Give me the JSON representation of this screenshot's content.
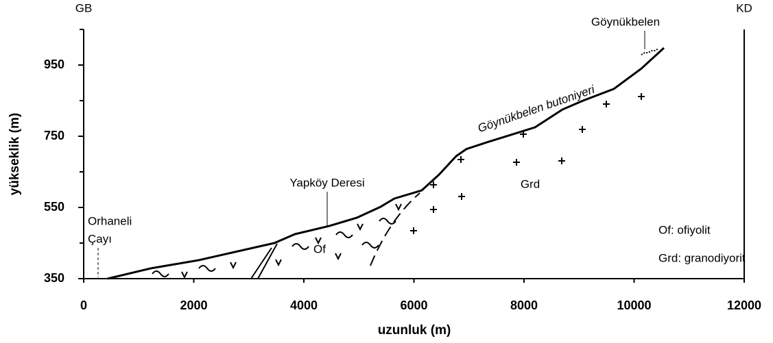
{
  "chart_data": {
    "type": "line",
    "x_label": "uzunluk (m)",
    "y_label": "yükseklik (m)",
    "x": [
      436,
      1221,
      2093,
      3464,
      3838,
      4461,
      4960,
      5396,
      5645,
      6143,
      6455,
      6766,
      6953,
      7327,
      8199,
      8698,
      9072,
      9632,
      10131,
      10542
    ],
    "values": [
      350,
      379,
      402,
      450,
      475,
      498,
      521,
      552,
      575,
      598,
      642,
      694,
      714,
      733,
      775,
      825,
      850,
      883,
      940,
      998
    ],
    "color": "#000000",
    "xlim": [
      0,
      12000
    ],
    "xticks": [
      0,
      2000,
      4000,
      6000,
      8000,
      10000,
      12000
    ],
    "ylim": [
      350,
      1050
    ],
    "yticks": [
      350,
      550,
      750,
      950
    ],
    "yminor_ticks": [
      450,
      650,
      850,
      1050
    ],
    "annotations": [
      "GB",
      "KD",
      "Göynükbelen",
      "Göynükbelen butoniyeri",
      "Yapköy Deresi",
      "Orhaneli",
      "Çayı",
      "Of",
      "Grd",
      "Of: ofiyolit",
      "Grd: granodiyorit"
    ]
  }
}
